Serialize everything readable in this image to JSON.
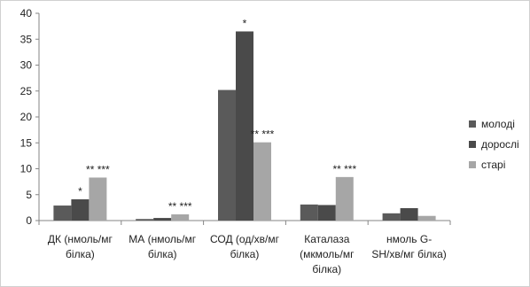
{
  "chart_data": {
    "type": "bar",
    "categories": [
      [
        "ДК (нмоль/мг",
        "білка)"
      ],
      [
        "МА (нмоль/мг",
        "білка)"
      ],
      [
        "СОД (од/хв/мг",
        "білка)"
      ],
      [
        "Каталаза",
        "(мкмоль/мг",
        "білка)"
      ],
      [
        "нмоль G-",
        "SH/хв/мг білка)"
      ]
    ],
    "series": [
      {
        "name": "молоді",
        "color": "#5a5a5a",
        "values": [
          2.9,
          0.3,
          25.2,
          3.1,
          1.4
        ]
      },
      {
        "name": "дорослі",
        "color": "#4a4a4a",
        "values": [
          4.1,
          0.5,
          36.5,
          3.0,
          2.4
        ]
      },
      {
        "name": "старі",
        "color": "#a6a6a6",
        "values": [
          8.3,
          1.2,
          15.1,
          8.4,
          0.9
        ]
      }
    ],
    "ylim": [
      0,
      40
    ],
    "yticks": [
      0,
      5,
      10,
      15,
      20,
      25,
      30,
      35,
      40
    ],
    "grid": false,
    "legend_position": "right",
    "annotations": [
      {
        "category": 0,
        "series": 1,
        "text": "*"
      },
      {
        "category": 0,
        "series": 2,
        "text": "** ***"
      },
      {
        "category": 1,
        "series": 2,
        "text": "** ***"
      },
      {
        "category": 2,
        "series": 1,
        "text": "*"
      },
      {
        "category": 2,
        "series": 2,
        "text": "** ***"
      },
      {
        "category": 3,
        "series": 2,
        "text": "** ***"
      }
    ]
  }
}
